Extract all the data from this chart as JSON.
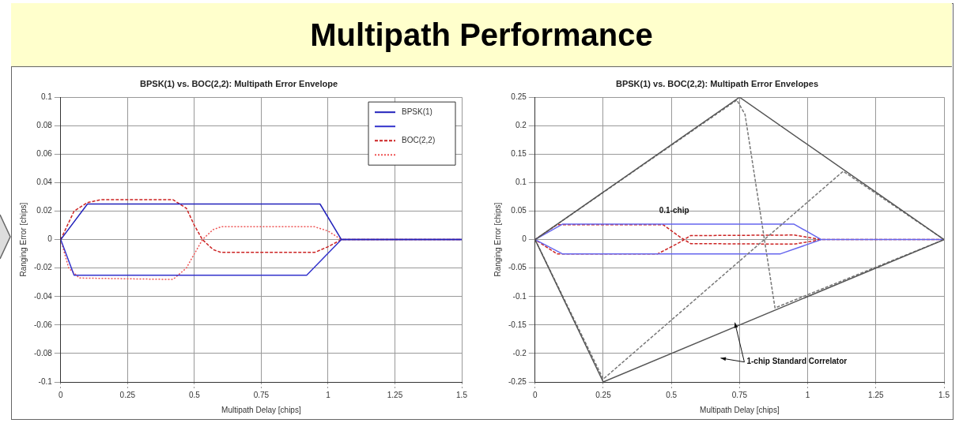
{
  "chart_data": [
    {
      "type": "other",
      "title": "Multipath Performance"
    },
    {
      "type": "line",
      "title": "BPSK(1) vs. BOC(2,2): Multipath Error Envelope",
      "xlabel": "Multipath Delay [chips]",
      "ylabel": "Ranging Error [chips]",
      "xlim": [
        0,
        1.5
      ],
      "xticks": [
        0,
        0.25,
        0.5,
        0.75,
        1,
        1.25,
        1.5
      ],
      "ylim": [
        -0.1,
        0.1
      ],
      "yticks": [
        -0.1,
        -0.08,
        -0.06,
        -0.04,
        -0.02,
        0,
        0.02,
        0.04,
        0.06,
        0.08,
        0.1
      ],
      "grid": true,
      "legend": "top right",
      "series": [
        {
          "name": "BPSK(1)",
          "color": "#2222bb",
          "line_style": "solid",
          "x": [
            0,
            0.1,
            0.97,
            1.05,
            1.5
          ],
          "values": [
            0,
            0.025,
            0.025,
            0,
            0
          ]
        },
        {
          "color": "#3333cc",
          "line_style": "solid",
          "x": [
            0,
            0.05,
            0.92,
            1.05,
            1.5
          ],
          "values": [
            0,
            -0.025,
            -0.025,
            0,
            0
          ]
        },
        {
          "name": "BOC(2,2)",
          "color": "#cc2222",
          "line_style": "dashed",
          "x": [
            0,
            0.05,
            0.1,
            0.15,
            0.42,
            0.47,
            0.5,
            0.53,
            0.57,
            0.6,
            0.95,
            1.0,
            1.05,
            1.5
          ],
          "values": [
            0,
            0.02,
            0.026,
            0.028,
            0.028,
            0.022,
            0.01,
            0,
            -0.007,
            -0.009,
            -0.009,
            -0.005,
            0,
            0
          ]
        },
        {
          "color": "#ee5555",
          "line_style": "dotted",
          "x": [
            0,
            0.03,
            0.07,
            0.42,
            0.47,
            0.5,
            0.53,
            0.57,
            0.6,
            0.95,
            1.0,
            1.05,
            1.5
          ],
          "values": [
            0,
            -0.02,
            -0.027,
            -0.028,
            -0.02,
            -0.01,
            0,
            0.007,
            0.009,
            0.009,
            0.006,
            0,
            0
          ]
        }
      ]
    },
    {
      "type": "line",
      "title": "BPSK(1) vs. BOC(2,2): Multipath Error Envelopes",
      "xlabel": "Multipath Delay [chips]",
      "ylabel": "Ranging Error [chips]",
      "xlim": [
        0,
        1.5
      ],
      "xticks": [
        0,
        0.25,
        0.5,
        0.75,
        1,
        1.25,
        1.5
      ],
      "ylim": [
        -0.25,
        0.25
      ],
      "yticks": [
        -0.25,
        -0.2,
        -0.15,
        -0.1,
        -0.05,
        0,
        0.05,
        0.1,
        0.15,
        0.2,
        0.25
      ],
      "grid": true,
      "annotations": [
        "0.1-chip",
        "1-chip Standard Correlator"
      ],
      "series": [
        {
          "color": "#555555",
          "line_style": "solid",
          "x": [
            0,
            0.75,
            1.5
          ],
          "values": [
            0,
            0.25,
            0
          ]
        },
        {
          "color": "#555555",
          "line_style": "solid",
          "x": [
            0,
            0.25,
            1.5
          ],
          "values": [
            0,
            -0.25,
            0
          ]
        },
        {
          "color": "#777777",
          "line_style": "dashed",
          "x": [
            0,
            0.74,
            0.77,
            0.88,
            1.5
          ],
          "values": [
            0,
            0.245,
            0.22,
            -0.12,
            0
          ]
        },
        {
          "color": "#777777",
          "line_style": "dashed",
          "x": [
            0,
            0.25,
            1.13,
            1.5
          ],
          "values": [
            0,
            -0.245,
            0.12,
            0
          ]
        },
        {
          "color": "#6666ee",
          "line_style": "solid",
          "x": [
            1.5,
            1.05,
            0.95,
            0.1,
            0,
            0.1,
            0.9,
            1.05
          ],
          "values": [
            0,
            0,
            0.027,
            0.027,
            0,
            -0.025,
            -0.025,
            0
          ]
        },
        {
          "color": "#cc2222",
          "line_style": "dashed",
          "x": [
            1.5,
            1.05,
            0.95,
            0.57,
            0.53,
            0.47,
            0.08,
            0,
            0.08,
            0.45,
            0.53,
            0.57,
            0.95,
            1.05
          ],
          "values": [
            0,
            0,
            -0.008,
            -0.007,
            0.005,
            0.026,
            0.026,
            0,
            -0.025,
            -0.025,
            -0.005,
            0.007,
            0.008,
            0
          ]
        }
      ]
    }
  ]
}
